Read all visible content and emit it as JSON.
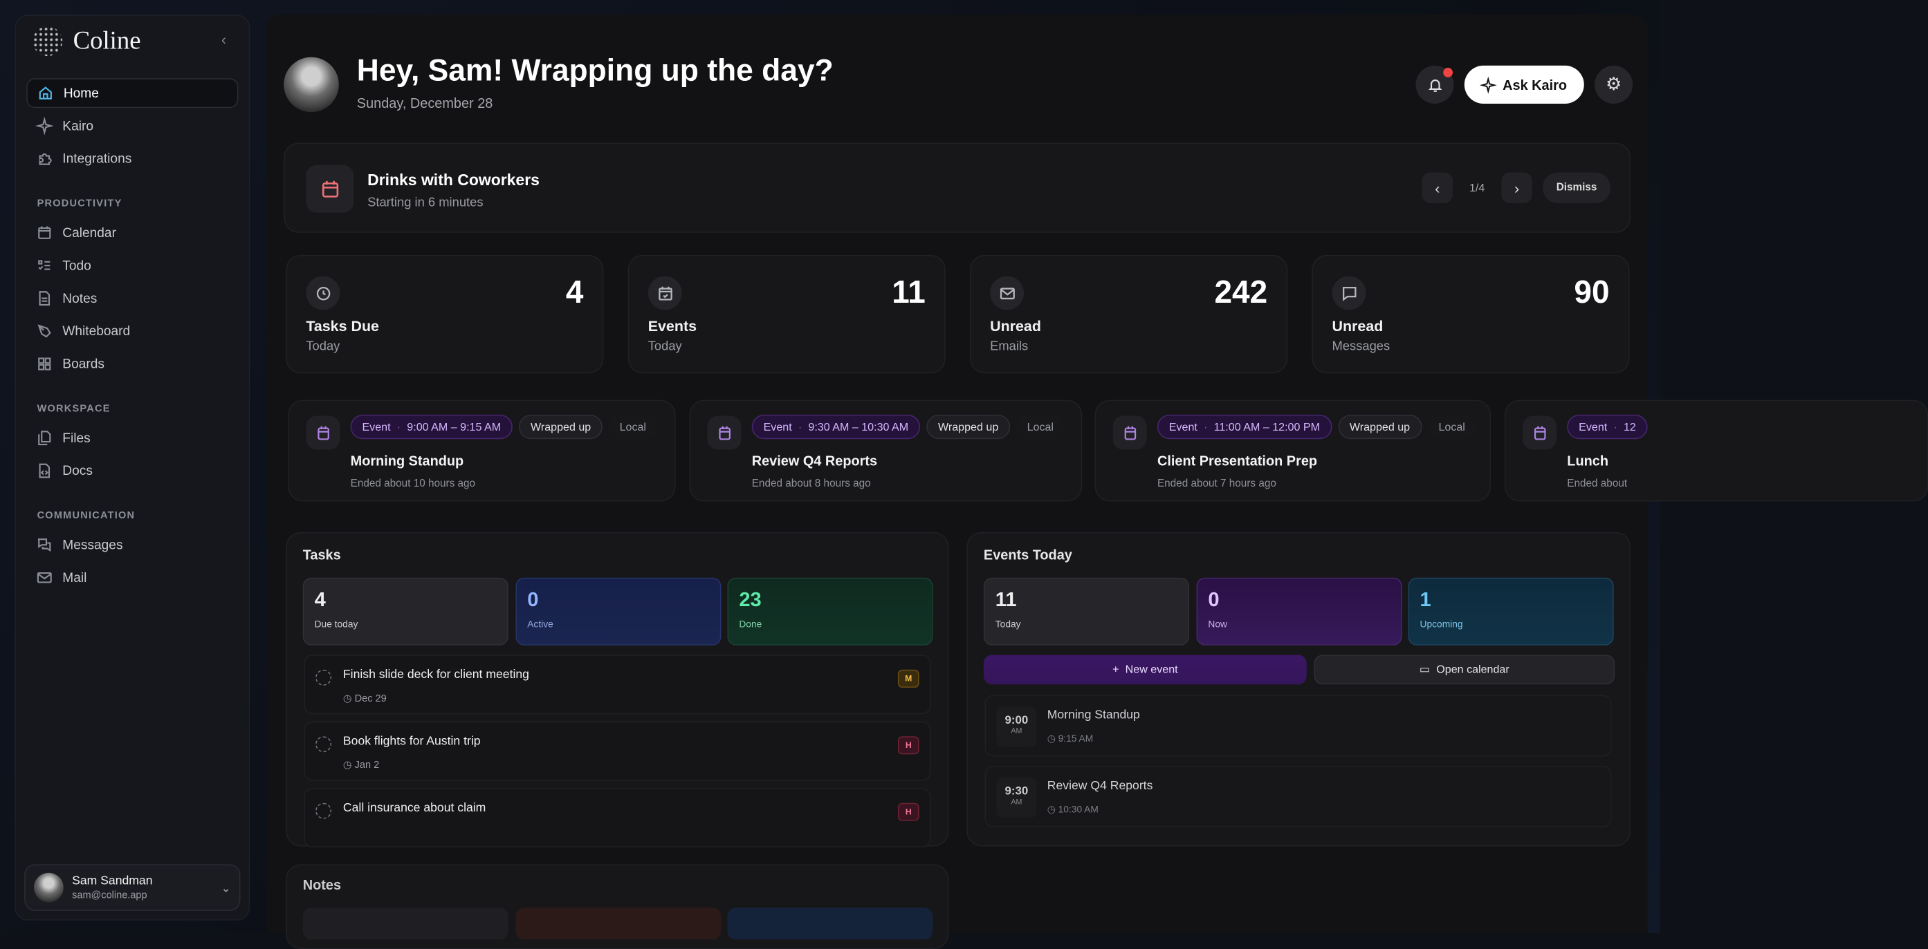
{
  "app": {
    "name": "Coline"
  },
  "sidebar": {
    "top": [
      {
        "label": "Home",
        "icon": "home-icon"
      },
      {
        "label": "Kairo",
        "icon": "sparkle-icon"
      },
      {
        "label": "Integrations",
        "icon": "puzzle-icon"
      }
    ],
    "sections": [
      {
        "title": "PRODUCTIVITY",
        "items": [
          {
            "label": "Calendar"
          },
          {
            "label": "Todo"
          },
          {
            "label": "Notes"
          },
          {
            "label": "Whiteboard"
          },
          {
            "label": "Boards"
          }
        ]
      },
      {
        "title": "WORKSPACE",
        "items": [
          {
            "label": "Files"
          },
          {
            "label": "Docs"
          }
        ]
      },
      {
        "title": "COMMUNICATION",
        "items": [
          {
            "label": "Messages"
          },
          {
            "label": "Mail"
          }
        ]
      }
    ],
    "user": {
      "name": "Sam Sandman",
      "email": "sam@coline.app"
    }
  },
  "header": {
    "greeting": "Hey, Sam! Wrapping up the day?",
    "date": "Sunday, December 28",
    "ask_label": "Ask Kairo",
    "notification_dot_color": "#ef4444"
  },
  "banner": {
    "title": "Drinks with Coworkers",
    "subtitle": "Starting in 6 minutes",
    "pager": "1/4",
    "dismiss": "Dismiss"
  },
  "stats": [
    {
      "value": "4",
      "label": "Tasks Due",
      "sub": "Today",
      "icon": "clock-icon"
    },
    {
      "value": "11",
      "label": "Events",
      "sub": "Today",
      "icon": "calendar-check-icon"
    },
    {
      "value": "242",
      "label": "Unread",
      "sub": "Emails",
      "icon": "mail-icon"
    },
    {
      "value": "90",
      "label": "Unread",
      "sub": "Messages",
      "icon": "chat-icon"
    }
  ],
  "event_cards": [
    {
      "tag": "Event",
      "time": "9:00 AM – 9:15 AM",
      "status": "Wrapped up",
      "zone": "Local",
      "title": "Morning Standup",
      "ended": "Ended about 10 hours ago"
    },
    {
      "tag": "Event",
      "time": "9:30 AM – 10:30 AM",
      "status": "Wrapped up",
      "zone": "Local",
      "title": "Review Q4 Reports",
      "ended": "Ended about 8 hours ago"
    },
    {
      "tag": "Event",
      "time": "11:00 AM – 12:00 PM",
      "status": "Wrapped up",
      "zone": "Local",
      "title": "Client Presentation Prep",
      "ended": "Ended about 7 hours ago"
    },
    {
      "tag": "Event",
      "time": "12",
      "title": "Lunch",
      "ended": "Ended about"
    }
  ],
  "tasks": {
    "title": "Tasks",
    "summary": [
      {
        "value": "4",
        "label": "Due today"
      },
      {
        "value": "0",
        "label": "Active"
      },
      {
        "value": "23",
        "label": "Done"
      }
    ],
    "items": [
      {
        "title": "Finish slide deck for client meeting",
        "due": "Dec 29",
        "priority": "M"
      },
      {
        "title": "Book flights for Austin trip",
        "due": "Jan 2",
        "priority": "H"
      },
      {
        "title": "Call insurance about claim",
        "priority": "H"
      }
    ]
  },
  "events_today": {
    "title": "Events Today",
    "summary": [
      {
        "value": "11",
        "label": "Today"
      },
      {
        "value": "0",
        "label": "Now"
      },
      {
        "value": "1",
        "label": "Upcoming"
      }
    ],
    "new_event": "New event",
    "open_calendar": "Open calendar",
    "items": [
      {
        "start": "9:00",
        "ampm": "AM",
        "title": "Morning Standup",
        "end": "9:15 AM"
      },
      {
        "start": "9:30",
        "ampm": "AM",
        "title": "Review Q4 Reports",
        "end": "10:30 AM"
      }
    ]
  },
  "notes": {
    "title": "Notes"
  }
}
